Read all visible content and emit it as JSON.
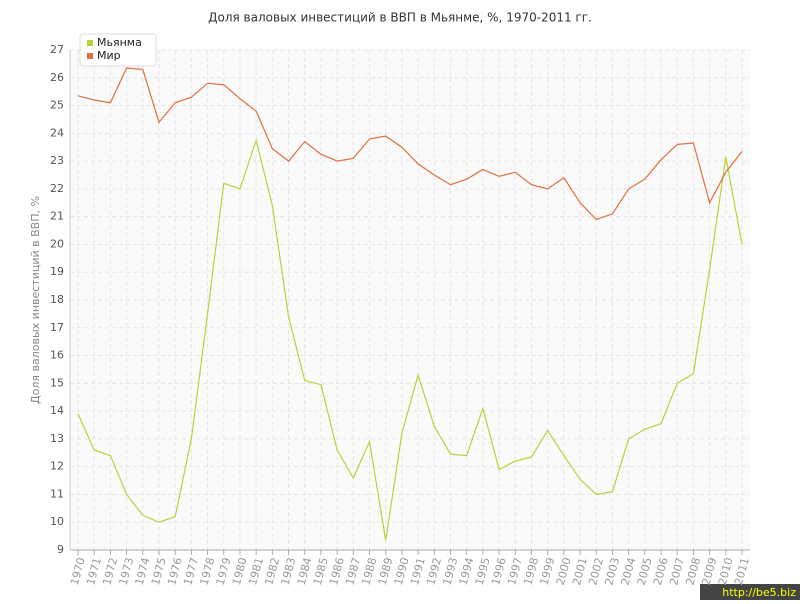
{
  "chart_data": {
    "type": "line",
    "title": "Доля валовых инвестиций в ВВП в Мьянме, %, 1970-2011 гг.",
    "y_label": "Доля валовых инвестиций в ВВП, %",
    "watermark": "http://be5.biz",
    "categories": [
      "1970",
      "1971",
      "1972",
      "1973",
      "1974",
      "1975",
      "1976",
      "1977",
      "1978",
      "1979",
      "1980",
      "1981",
      "1982",
      "1983",
      "1984",
      "1985",
      "1986",
      "1987",
      "1988",
      "1989",
      "1990",
      "1991",
      "1992",
      "1993",
      "1994",
      "1995",
      "1996",
      "1997",
      "1998",
      "1999",
      "2000",
      "2001",
      "2002",
      "2003",
      "2004",
      "2005",
      "2006",
      "2007",
      "2008",
      "2009",
      "2010",
      "2011"
    ],
    "series": [
      {
        "name": "Мьянма",
        "color": "#b5d43a",
        "values": [
          13.9,
          12.6,
          12.4,
          11.0,
          10.25,
          10.0,
          10.2,
          13.0,
          17.5,
          22.2,
          22.0,
          23.75,
          21.4,
          17.4,
          15.1,
          14.95,
          12.6,
          11.6,
          12.9,
          9.35,
          13.2,
          15.3,
          13.45,
          12.45,
          12.4,
          14.1,
          11.9,
          12.2,
          12.35,
          13.3,
          12.4,
          11.55,
          11.0,
          11.1,
          13.0,
          13.35,
          13.55,
          15.0,
          15.35,
          19.1,
          23.15,
          20.0
        ]
      },
      {
        "name": "Мир",
        "color": "#e0703f",
        "values": [
          25.35,
          25.2,
          25.1,
          26.35,
          26.3,
          24.4,
          25.1,
          25.3,
          25.8,
          25.75,
          25.25,
          24.8,
          23.45,
          23.0,
          23.7,
          23.25,
          23.0,
          23.1,
          23.8,
          23.9,
          23.5,
          22.9,
          22.5,
          22.15,
          22.35,
          22.7,
          22.45,
          22.6,
          22.15,
          22.0,
          22.4,
          21.5,
          20.9,
          21.1,
          22.0,
          22.35,
          23.05,
          23.6,
          23.65,
          21.5,
          22.6,
          23.35
        ]
      }
    ],
    "ylim": [
      9,
      27
    ],
    "yticks": [
      9,
      10,
      11,
      12,
      13,
      14,
      15,
      16,
      17,
      18,
      19,
      20,
      21,
      22,
      23,
      24,
      25,
      26,
      27
    ],
    "grid": true,
    "legend": "top-left"
  }
}
